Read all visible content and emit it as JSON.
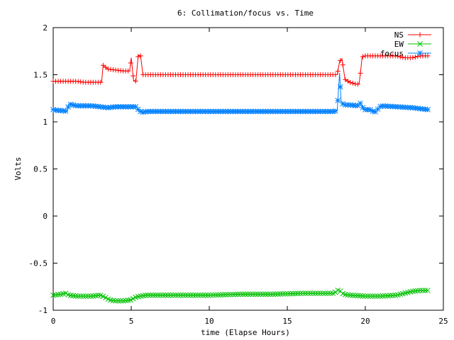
{
  "chart_data": {
    "type": "line",
    "title": "6: Collimation/focus vs. Time",
    "xlabel": "time (Elapse Hours)",
    "ylabel": "Volts",
    "xlim": [
      0,
      25
    ],
    "ylim": [
      -1,
      2
    ],
    "xticks": [
      0,
      5,
      10,
      15,
      20,
      25
    ],
    "xtick_labels": [
      "0",
      "5",
      "10",
      "15",
      "20",
      "25"
    ],
    "yticks": [
      -1,
      -0.5,
      0,
      0.5,
      1,
      1.5,
      2
    ],
    "ytick_labels": [
      "-1",
      "-0.5",
      "0",
      "0.5",
      "1",
      "1.5",
      "2"
    ],
    "grid": false,
    "legend_position": "top-right",
    "series": [
      {
        "name": "NS",
        "color": "#ff0000",
        "marker": "plus",
        "x": [
          0,
          0.5,
          1,
          1.5,
          2,
          2.5,
          3,
          3.1,
          3.2,
          3.35,
          3.5,
          4,
          4.5,
          4.9,
          5.0,
          5.15,
          5.3,
          5.45,
          5.6,
          5.75,
          6,
          8,
          10,
          12,
          14,
          16,
          18,
          18.2,
          18.35,
          18.5,
          18.7,
          19,
          19.4,
          19.6,
          19.8,
          20,
          21,
          22,
          22.5,
          23,
          23.5,
          24
        ],
        "values": [
          1.43,
          1.43,
          1.43,
          1.43,
          1.42,
          1.42,
          1.42,
          1.42,
          1.6,
          1.58,
          1.56,
          1.55,
          1.54,
          1.54,
          1.68,
          1.44,
          1.43,
          1.71,
          1.7,
          1.5,
          1.5,
          1.5,
          1.5,
          1.5,
          1.5,
          1.5,
          1.5,
          1.5,
          1.64,
          1.67,
          1.45,
          1.42,
          1.4,
          1.4,
          1.69,
          1.7,
          1.7,
          1.7,
          1.68,
          1.68,
          1.7,
          1.7
        ]
      },
      {
        "name": "EW",
        "color": "#00c000",
        "marker": "x",
        "x": [
          0,
          0.5,
          0.8,
          1,
          1.5,
          2,
          2.5,
          3,
          3.3,
          3.6,
          4,
          4.5,
          5,
          5.3,
          5.6,
          6,
          8,
          10,
          12,
          14,
          16,
          18,
          18.3,
          18.6,
          19,
          20,
          21,
          22,
          22.5,
          23,
          23.5,
          24
        ],
        "values": [
          -0.84,
          -0.83,
          -0.82,
          -0.84,
          -0.85,
          -0.85,
          -0.85,
          -0.84,
          -0.86,
          -0.89,
          -0.9,
          -0.9,
          -0.89,
          -0.86,
          -0.85,
          -0.84,
          -0.84,
          -0.84,
          -0.83,
          -0.83,
          -0.82,
          -0.82,
          -0.78,
          -0.83,
          -0.84,
          -0.85,
          -0.85,
          -0.84,
          -0.82,
          -0.8,
          -0.79,
          -0.79
        ]
      },
      {
        "name": "focus",
        "color": "#0080ff",
        "marker": "star",
        "x": [
          0,
          0.3,
          0.6,
          0.9,
          1,
          1.5,
          2,
          2.5,
          3,
          3.5,
          4,
          4.5,
          5,
          5.3,
          5.5,
          5.7,
          6,
          8,
          10,
          12,
          14,
          16,
          18,
          18.2,
          18.35,
          18.45,
          18.6,
          19,
          19.5,
          19.7,
          19.9,
          20.3,
          20.6,
          21,
          22,
          23,
          24
        ],
        "values": [
          1.13,
          1.12,
          1.12,
          1.11,
          1.19,
          1.17,
          1.17,
          1.17,
          1.16,
          1.15,
          1.16,
          1.16,
          1.16,
          1.16,
          1.12,
          1.1,
          1.11,
          1.11,
          1.11,
          1.11,
          1.11,
          1.11,
          1.11,
          1.12,
          1.52,
          1.22,
          1.18,
          1.18,
          1.17,
          1.2,
          1.13,
          1.13,
          1.1,
          1.17,
          1.16,
          1.15,
          1.13
        ]
      }
    ]
  }
}
